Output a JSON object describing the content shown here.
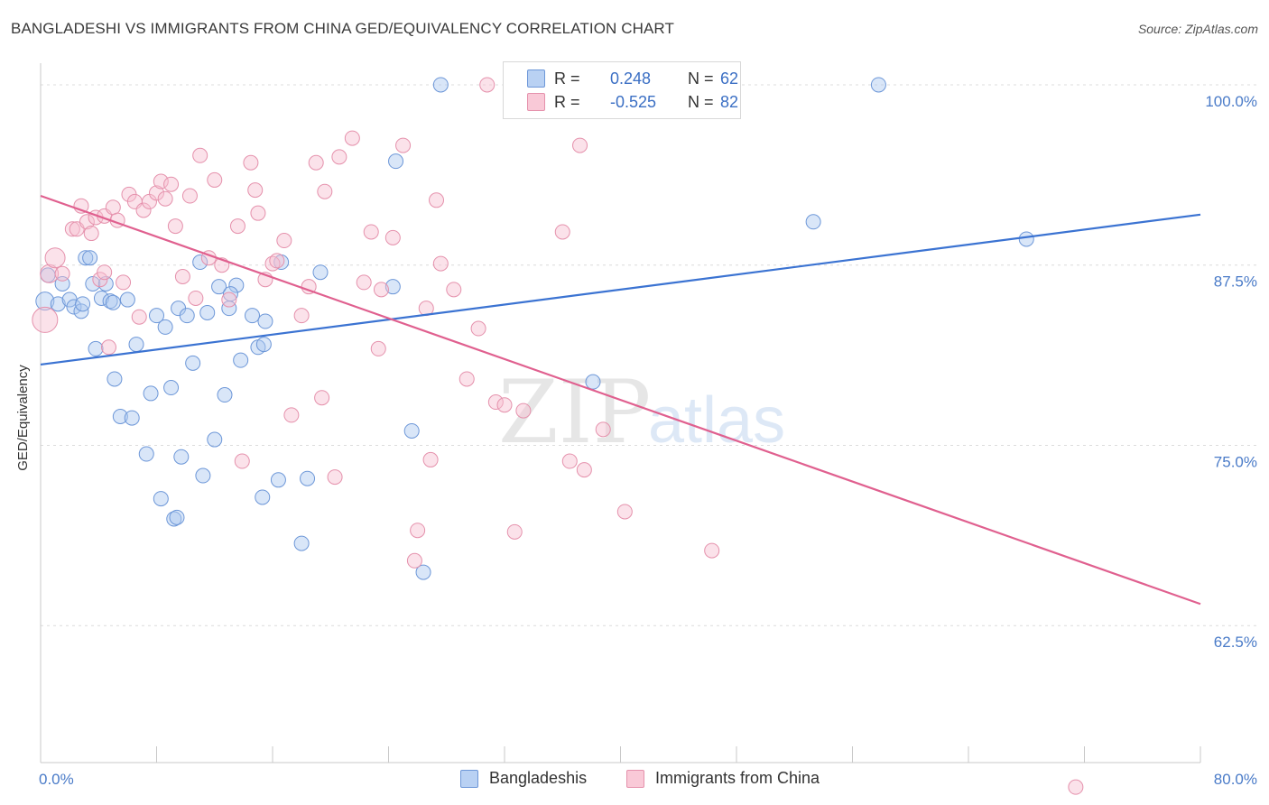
{
  "header": {
    "title": "BANGLADESHI VS IMMIGRANTS FROM CHINA GED/EQUIVALENCY CORRELATION CHART",
    "source": "Source: ZipAtlas.com"
  },
  "legend": {
    "rows": [
      {
        "r_label": "R =",
        "r_value": "0.248",
        "n_label": "N =",
        "n_value": "62",
        "color": "#9ec0ee"
      },
      {
        "r_label": "R =",
        "r_value": "-0.525",
        "n_label": "N =",
        "n_value": "82",
        "color": "#f5b5c8"
      }
    ],
    "bottom": [
      {
        "label": "Bangladeshis",
        "color": "#9ec0ee"
      },
      {
        "label": "Immigrants from China",
        "color": "#f5b5c8"
      }
    ]
  },
  "watermark": {
    "zip": "ZIP",
    "atlas": "atlas"
  },
  "chart_data": {
    "type": "scatter",
    "title": "BANGLADESHI VS IMMIGRANTS FROM CHINA GED/EQUIVALENCY CORRELATION CHART",
    "xlabel": "",
    "ylabel": "GED/Equivalency",
    "xlim": [
      0,
      80
    ],
    "ylim": [
      53,
      101.5
    ],
    "x_tick_labels": [
      {
        "value": 0,
        "label": "0.0%"
      },
      {
        "value": 80,
        "label": "80.0%"
      }
    ],
    "y_tick_labels": [
      {
        "value": 100,
        "label": "100.0%"
      },
      {
        "value": 87.5,
        "label": "87.5%"
      },
      {
        "value": 75,
        "label": "75.0%"
      },
      {
        "value": 62.5,
        "label": "62.5%"
      }
    ],
    "series": [
      {
        "name": "Bangladeshis",
        "color": "#3b73d2",
        "fill": "#aac8f0",
        "trend": {
          "x": [
            0,
            80
          ],
          "y": [
            80.6,
            91.0
          ]
        },
        "points": [
          [
            0.3,
            85.0
          ],
          [
            0.5,
            86.8
          ],
          [
            1.2,
            84.8
          ],
          [
            1.5,
            86.2
          ],
          [
            2.0,
            85.1
          ],
          [
            2.3,
            84.6
          ],
          [
            2.8,
            84.3
          ],
          [
            3.1,
            88.0
          ],
          [
            3.4,
            88.0
          ],
          [
            3.6,
            86.2
          ],
          [
            3.8,
            81.7
          ],
          [
            4.2,
            85.2
          ],
          [
            4.5,
            86.2
          ],
          [
            4.8,
            85.0
          ],
          [
            5.1,
            79.6
          ],
          [
            5.5,
            77.0
          ],
          [
            6.0,
            85.1
          ],
          [
            6.3,
            76.9
          ],
          [
            6.6,
            82.0
          ],
          [
            7.3,
            74.4
          ],
          [
            7.6,
            78.6
          ],
          [
            8.0,
            84.0
          ],
          [
            8.3,
            71.3
          ],
          [
            8.6,
            83.2
          ],
          [
            9.0,
            79.0
          ],
          [
            9.5,
            84.5
          ],
          [
            9.7,
            74.2
          ],
          [
            10.1,
            84.0
          ],
          [
            10.5,
            80.7
          ],
          [
            11.0,
            87.7
          ],
          [
            11.2,
            72.9
          ],
          [
            11.5,
            84.2
          ],
          [
            12.0,
            75.4
          ],
          [
            12.3,
            86.0
          ],
          [
            12.7,
            78.5
          ],
          [
            13.0,
            84.5
          ],
          [
            13.5,
            86.1
          ],
          [
            13.8,
            80.9
          ],
          [
            14.6,
            84.0
          ],
          [
            15.0,
            81.8
          ],
          [
            15.3,
            71.4
          ],
          [
            15.5,
            83.6
          ],
          [
            16.4,
            72.6
          ],
          [
            16.6,
            87.7
          ],
          [
            18.0,
            68.2
          ],
          [
            18.4,
            72.7
          ],
          [
            19.3,
            87.0
          ],
          [
            24.3,
            86.0
          ],
          [
            24.5,
            94.7
          ],
          [
            25.6,
            76.0
          ],
          [
            26.4,
            66.2
          ],
          [
            27.6,
            100.0
          ],
          [
            38.1,
            79.4
          ],
          [
            53.3,
            90.5
          ],
          [
            57.8,
            100.0
          ],
          [
            68.0,
            89.3
          ],
          [
            2.9,
            84.8
          ],
          [
            5.0,
            84.9
          ],
          [
            9.2,
            69.9
          ],
          [
            9.4,
            70.0
          ],
          [
            13.1,
            85.5
          ],
          [
            15.4,
            82.0
          ]
        ]
      },
      {
        "name": "Immigrants from China",
        "color": "#e0608f",
        "fill": "#f7bfd0",
        "trend": {
          "x": [
            0,
            80
          ],
          "y": [
            92.3,
            64.0
          ]
        },
        "points": [
          [
            0.3,
            83.7
          ],
          [
            0.6,
            86.9
          ],
          [
            1.0,
            88.0
          ],
          [
            1.5,
            86.9
          ],
          [
            2.2,
            90.0
          ],
          [
            2.5,
            90.0
          ],
          [
            2.8,
            91.6
          ],
          [
            3.2,
            90.5
          ],
          [
            3.5,
            89.7
          ],
          [
            3.8,
            90.8
          ],
          [
            4.1,
            86.5
          ],
          [
            4.4,
            90.9
          ],
          [
            4.7,
            81.8
          ],
          [
            5.0,
            91.5
          ],
          [
            5.3,
            90.6
          ],
          [
            5.7,
            86.3
          ],
          [
            6.1,
            92.4
          ],
          [
            6.5,
            91.9
          ],
          [
            6.8,
            83.9
          ],
          [
            7.1,
            91.3
          ],
          [
            7.5,
            91.9
          ],
          [
            8.0,
            92.5
          ],
          [
            8.3,
            93.3
          ],
          [
            8.6,
            92.1
          ],
          [
            9.0,
            93.1
          ],
          [
            9.3,
            90.2
          ],
          [
            9.8,
            86.7
          ],
          [
            10.3,
            92.3
          ],
          [
            10.7,
            85.2
          ],
          [
            11.0,
            95.1
          ],
          [
            11.6,
            88.0
          ],
          [
            12.0,
            93.4
          ],
          [
            12.5,
            87.5
          ],
          [
            13.0,
            85.1
          ],
          [
            13.6,
            90.2
          ],
          [
            13.9,
            73.9
          ],
          [
            14.5,
            94.6
          ],
          [
            14.8,
            92.7
          ],
          [
            15.0,
            91.1
          ],
          [
            15.5,
            86.5
          ],
          [
            16.0,
            87.6
          ],
          [
            16.3,
            87.8
          ],
          [
            16.8,
            89.2
          ],
          [
            17.3,
            77.1
          ],
          [
            18.0,
            84.0
          ],
          [
            18.5,
            86.0
          ],
          [
            19.0,
            94.6
          ],
          [
            19.4,
            78.3
          ],
          [
            19.6,
            92.6
          ],
          [
            20.3,
            72.8
          ],
          [
            20.6,
            95.0
          ],
          [
            21.5,
            96.3
          ],
          [
            22.3,
            86.3
          ],
          [
            22.8,
            89.8
          ],
          [
            23.3,
            81.7
          ],
          [
            23.5,
            85.8
          ],
          [
            24.3,
            89.4
          ],
          [
            25.0,
            95.8
          ],
          [
            25.8,
            67.0
          ],
          [
            26.0,
            69.1
          ],
          [
            26.6,
            84.5
          ],
          [
            26.9,
            74.0
          ],
          [
            27.3,
            92.0
          ],
          [
            27.6,
            87.6
          ],
          [
            28.5,
            85.8
          ],
          [
            29.4,
            79.6
          ],
          [
            30.2,
            83.1
          ],
          [
            30.8,
            100.0
          ],
          [
            31.4,
            78.0
          ],
          [
            32.0,
            77.8
          ],
          [
            32.7,
            69.0
          ],
          [
            33.3,
            77.4
          ],
          [
            33.8,
            100.0
          ],
          [
            36.0,
            89.8
          ],
          [
            36.5,
            73.9
          ],
          [
            37.2,
            95.8
          ],
          [
            37.5,
            73.3
          ],
          [
            38.8,
            76.1
          ],
          [
            40.3,
            70.4
          ],
          [
            46.3,
            67.7
          ],
          [
            71.4,
            51.3
          ],
          [
            4.4,
            87.0
          ]
        ]
      }
    ]
  }
}
